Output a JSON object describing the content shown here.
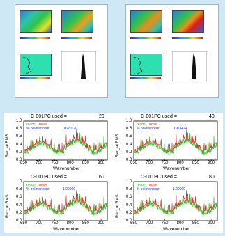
{
  "figure": {
    "plots": [
      {
        "used_label": "C-001PC used =",
        "used_value": "20",
        "legend_recon": "recon",
        "legend_noise": "noise",
        "legend_below": "% below noise:",
        "below_value": "0.620120"
      },
      {
        "used_label": "C-001PC used =",
        "used_value": "40",
        "legend_recon": "recon",
        "legend_noise": "noise",
        "legend_below": "% below noise:",
        "below_value": "0.974474"
      },
      {
        "used_label": "C-001PC used =",
        "used_value": "60",
        "legend_recon": "recon",
        "legend_noise": "noise",
        "legend_below": "% below noise:",
        "below_value": "1.00000"
      },
      {
        "used_label": "C-001PC used =",
        "used_value": "80",
        "legend_recon": "recon",
        "legend_noise": "noise",
        "legend_below": "% below noise:",
        "below_value": "1.00000"
      }
    ],
    "ylabel": "Rec_al RMS",
    "xlabel": "Wavenumber",
    "x_ticks": [
      "650",
      "700",
      "750",
      "800",
      "850",
      "900"
    ],
    "y_ticks": [
      "0.0",
      "0.2",
      "0.4",
      "0.6",
      "0.8",
      "1.0"
    ]
  },
  "colors": {
    "background": "#cfe8f6",
    "recon": "#2db82d",
    "noise": "#e0301e",
    "below": "#2233cc"
  },
  "chart_data": [
    {
      "type": "line",
      "title": "",
      "xlabel": "Wavenumber",
      "ylabel": "Rec_al RMS",
      "xlim": [
        650,
        920
      ],
      "ylim": [
        0,
        1.0
      ],
      "series": [
        {
          "name": "recon",
          "x": [
            650,
            680,
            700,
            720,
            740,
            760,
            780,
            800,
            820,
            840,
            860,
            880,
            900,
            915
          ],
          "values": [
            0.45,
            0.35,
            0.3,
            0.32,
            0.4,
            0.28,
            0.42,
            0.55,
            0.35,
            0.6,
            0.4,
            0.3,
            0.25,
            0.2
          ]
        },
        {
          "name": "noise",
          "x": [
            650,
            680,
            700,
            720,
            740,
            760,
            780,
            800,
            820,
            840,
            860,
            880,
            900,
            915
          ],
          "values": [
            0.5,
            0.4,
            0.35,
            0.38,
            0.45,
            0.33,
            0.48,
            0.62,
            0.4,
            0.7,
            0.45,
            0.35,
            0.3,
            0.25
          ]
        }
      ]
    }
  ]
}
